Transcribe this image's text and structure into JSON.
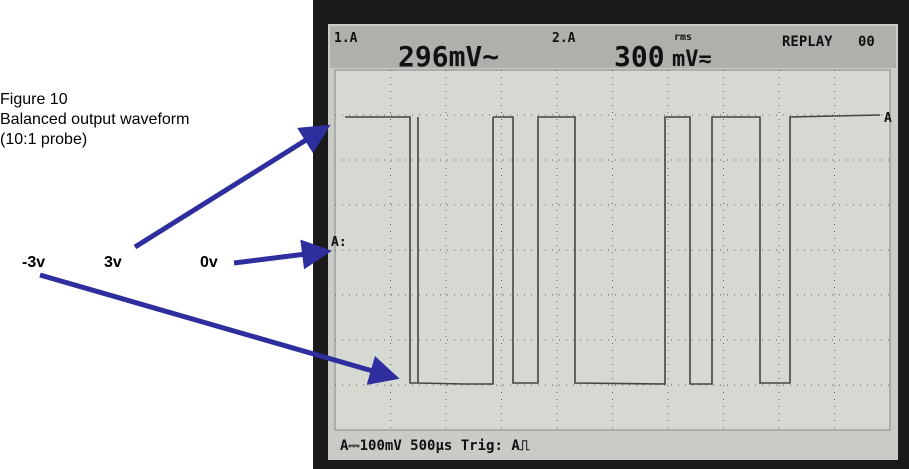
{
  "caption": {
    "figure": "Figure 10",
    "title": "Balanced output waveform",
    "note": "(10:1 probe)"
  },
  "labels": {
    "minus": "-3v",
    "plus": "3v",
    "zero": "0v"
  },
  "scope": {
    "ch1": "1.A",
    "reading1": "296mV~",
    "ch2": "2.A",
    "reading2": "300",
    "rms": "rms",
    "unit2": "mV≂",
    "mode": "REPLAY",
    "counter": "00",
    "marker_right": "A",
    "marker_left": "A:",
    "status": "A⎓100mV 500µs Trig: A⎍"
  }
}
